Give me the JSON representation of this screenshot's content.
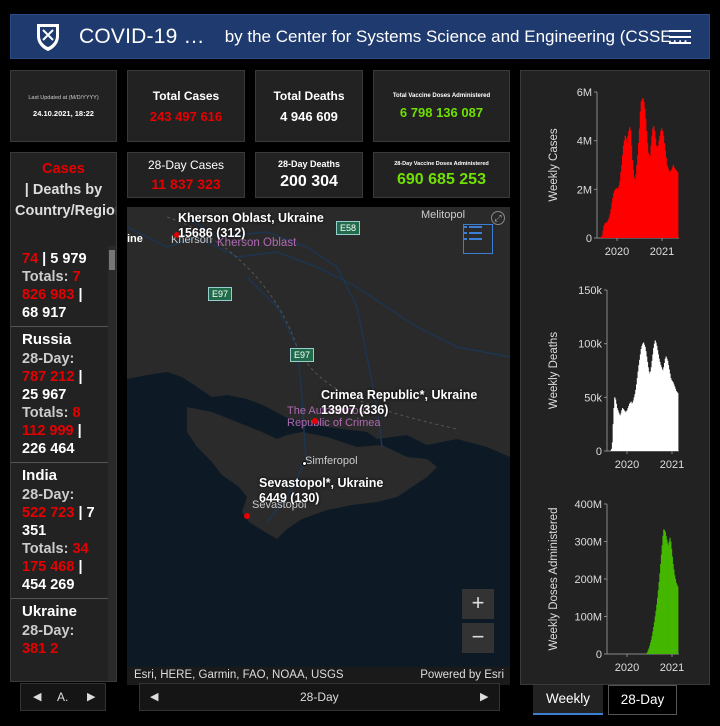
{
  "header": {
    "title": "COVID-19 …",
    "subtitle": "by the Center for Systems Science and Engineering (CSSE…"
  },
  "last_updated": {
    "label": "Last Updated at (M/D/YYYY)",
    "value": "24.10.2021, 18:22"
  },
  "stats": {
    "total_cases": {
      "label": "Total Cases",
      "value": "243 497 616"
    },
    "total_deaths": {
      "label": "Total Deaths",
      "value": "4 946 609"
    },
    "total_vaccine": {
      "label": "Total Vaccine Doses Administered",
      "value": "6 798 136 087"
    },
    "cases_28": {
      "label": "28-Day Cases",
      "value": "11 837 323"
    },
    "deaths_28": {
      "label": "28-Day Deaths",
      "value": "200 304"
    },
    "vaccine_28": {
      "label": "28-Day Vaccine Doses Administered",
      "value": "690 685 253"
    }
  },
  "list": {
    "head_cases": "Cases",
    "head_rest": "| Deaths by Country/Region/Sovereignty",
    "partial": {
      "line1_red": "74",
      "line1_rest": " | 5 979",
      "totals_label": "Totals: ",
      "totals_red": "7 826 983",
      "totals_rest": " | 68 917"
    },
    "items": [
      {
        "name": "Russia",
        "day_label": "28-Day: ",
        "day_cases": "787 212",
        "day_deaths": "25 967",
        "totals_label": "Totals: ",
        "total_cases": "8 112 999",
        "total_deaths": "226 464"
      },
      {
        "name": "India",
        "day_label": "28-Day: ",
        "day_cases": "522 723",
        "day_deaths": "7 351",
        "totals_label": "Totals: ",
        "total_cases": "34 175 468",
        "total_deaths": "454 269"
      },
      {
        "name": "Ukraine",
        "day_label": "28-Day: ",
        "day_cases": "381 2",
        "day_deaths": "",
        "totals_label": "",
        "total_cases": "",
        "total_deaths": ""
      }
    ]
  },
  "map": {
    "labels": {
      "kherson": "Kherson Oblast, Ukraine",
      "kherson_val": "15686 (312)",
      "crimea": "Crimea Republic*, Ukraine",
      "crimea_val": "13907 (336)",
      "sevastopol": "Sevastopol*, Ukraine",
      "sevastopol_val": "6449 (130)"
    },
    "cities": {
      "kherson": "Kherson",
      "melitopol": "Melitopol",
      "simferopol": "Simferopol",
      "sevastopol": "Sevastopol",
      "ine": "ine"
    },
    "regions": {
      "kherson_oblast": "Kherson Oblast",
      "crimea": "The Autonomous Republic of Crimea"
    },
    "shields": {
      "e58": "E58",
      "e97a": "E97",
      "e97b": "E97"
    },
    "attribution": "Esri, HERE, Garmin, FAO, NOAA, USGS",
    "powered": "Powered by Esri",
    "zoom_in": "+",
    "zoom_out": "−"
  },
  "list_pager": {
    "label": "A."
  },
  "map_pager": {
    "label": "28-Day"
  },
  "chart_tabs": {
    "weekly": "Weekly",
    "day28": "28-Day"
  },
  "chart_data": [
    {
      "type": "area",
      "ylabel": "Weekly Cases",
      "xticks": [
        "2020",
        "2021"
      ],
      "yticks": [
        "0",
        "2M",
        "4M",
        "6M"
      ],
      "ylim": [
        0,
        6000000
      ],
      "color": "#ff0000",
      "x": [
        0,
        1,
        2,
        3,
        4,
        5,
        6,
        7,
        8,
        9,
        10,
        11,
        12,
        13,
        14,
        15,
        16,
        17,
        18,
        19,
        20,
        21,
        22,
        23,
        24,
        25,
        26,
        27,
        28,
        29,
        30,
        31,
        32,
        33,
        34,
        35,
        36,
        37,
        38,
        39,
        40,
        41,
        42,
        43,
        44,
        45,
        46,
        47,
        48,
        49,
        50,
        51,
        52,
        53,
        54,
        55,
        56,
        57,
        58,
        59,
        60,
        61,
        62,
        63,
        64,
        65,
        66,
        67,
        68,
        69,
        70,
        71,
        72,
        73,
        74,
        75,
        76,
        77,
        78,
        79,
        80,
        81,
        82,
        83,
        84,
        85,
        86,
        87,
        88,
        89
      ],
      "values": [
        0,
        0,
        10000,
        50000,
        100000,
        300000,
        500000,
        600000,
        620000,
        640000,
        680000,
        750000,
        850000,
        1000000,
        1200000,
        1450000,
        1650000,
        1850000,
        1950000,
        2000000,
        2050000,
        2000000,
        2050000,
        2150000,
        2350000,
        2700000,
        3000000,
        3400000,
        3800000,
        4000000,
        4200000,
        4100000,
        3900000,
        4200000,
        4400000,
        4550000,
        4450000,
        3800000,
        3200000,
        2800000,
        2500000,
        2400000,
        2600000,
        3000000,
        3400000,
        3900000,
        4500000,
        5200000,
        5600000,
        5700000,
        5750000,
        5600000,
        5300000,
        4900000,
        4400000,
        3900000,
        3500000,
        3300000,
        3400000,
        3800000,
        4200000,
        4500000,
        4600000,
        4400000,
        4100000,
        3800000,
        3700000,
        3800000,
        4000000,
        4200000,
        4400000,
        4500000,
        4400000,
        4200000,
        3900000,
        3600000,
        3300000,
        3000000,
        2900000,
        2800000,
        2700000,
        2750000,
        2800000,
        2900000,
        3000000,
        2900000,
        2850000,
        2800000,
        2750000,
        2700000
      ]
    },
    {
      "type": "area",
      "ylabel": "Weekly Deaths",
      "xticks": [
        "2020",
        "2021"
      ],
      "yticks": [
        "0",
        "50k",
        "100k",
        "150k"
      ],
      "ylim": [
        0,
        150000
      ],
      "color": "#ffffff",
      "x": [
        0,
        1,
        2,
        3,
        4,
        5,
        6,
        7,
        8,
        9,
        10,
        11,
        12,
        13,
        14,
        15,
        16,
        17,
        18,
        19,
        20,
        21,
        22,
        23,
        24,
        25,
        26,
        27,
        28,
        29,
        30,
        31,
        32,
        33,
        34,
        35,
        36,
        37,
        38,
        39,
        40,
        41,
        42,
        43,
        44,
        45,
        46,
        47,
        48,
        49,
        50,
        51,
        52,
        53,
        54,
        55,
        56,
        57,
        58,
        59,
        60,
        61,
        62,
        63,
        64,
        65,
        66,
        67,
        68,
        69,
        70,
        71,
        72,
        73,
        74,
        75,
        76,
        77,
        78,
        79,
        80,
        81,
        82,
        83,
        84,
        85,
        86,
        87,
        88,
        89
      ],
      "values": [
        0,
        0,
        0,
        500,
        2000,
        8000,
        25000,
        40000,
        50000,
        48000,
        44000,
        40000,
        38000,
        36000,
        34000,
        33000,
        35000,
        38000,
        40000,
        39000,
        38000,
        37000,
        36000,
        37000,
        38000,
        40000,
        42000,
        44000,
        45000,
        46000,
        44000,
        45000,
        47000,
        50000,
        53000,
        57000,
        62000,
        68000,
        74000,
        80000,
        85000,
        90000,
        95000,
        98000,
        100000,
        101000,
        99000,
        97000,
        93000,
        88000,
        83000,
        78000,
        74000,
        72000,
        74000,
        78000,
        84000,
        90000,
        96000,
        100000,
        103000,
        101000,
        98000,
        94000,
        90000,
        86000,
        83000,
        80000,
        78000,
        76000,
        75000,
        78000,
        82000,
        86000,
        88000,
        86000,
        84000,
        80000,
        76000,
        72000,
        68000,
        66000,
        65000,
        64000,
        62000,
        60000,
        58000,
        56000,
        55000,
        54000
      ]
    },
    {
      "type": "area",
      "ylabel": "Weekly Doses Administered",
      "xticks": [
        "2020",
        "2021"
      ],
      "yticks": [
        "0",
        "100M",
        "200M",
        "300M",
        "400M"
      ],
      "ylim": [
        0,
        400000000
      ],
      "color": "#44b700",
      "x": [
        0,
        1,
        2,
        3,
        4,
        5,
        6,
        7,
        8,
        9,
        10,
        11,
        12,
        13,
        14,
        15,
        16,
        17,
        18,
        19,
        20,
        21,
        22,
        23,
        24,
        25,
        26,
        27,
        28,
        29,
        30,
        31,
        32,
        33,
        34,
        35,
        36,
        37,
        38,
        39,
        40,
        41,
        42,
        43,
        44,
        45,
        46,
        47,
        48,
        49,
        50,
        51,
        52,
        53,
        54,
        55,
        56,
        57,
        58,
        59,
        60,
        61,
        62,
        63,
        64,
        65,
        66,
        67,
        68,
        69,
        70,
        71,
        72,
        73,
        74,
        75,
        76,
        77,
        78,
        79,
        80,
        81,
        82,
        83,
        84,
        85,
        86,
        87,
        88,
        89
      ],
      "values": [
        0,
        0,
        0,
        0,
        0,
        0,
        0,
        0,
        0,
        0,
        0,
        0,
        0,
        0,
        0,
        0,
        0,
        0,
        0,
        0,
        0,
        0,
        0,
        0,
        0,
        0,
        0,
        0,
        0,
        0,
        0,
        0,
        0,
        0,
        0,
        0,
        0,
        0,
        0,
        0,
        0,
        0,
        0,
        0,
        0,
        0,
        0,
        0,
        500000,
        2000000,
        5000000,
        10000000,
        15000000,
        22000000,
        30000000,
        38000000,
        48000000,
        60000000,
        72000000,
        85000000,
        100000000,
        115000000,
        132000000,
        150000000,
        170000000,
        192000000,
        215000000,
        240000000,
        265000000,
        290000000,
        315000000,
        332000000,
        330000000,
        325000000,
        315000000,
        305000000,
        295000000,
        290000000,
        300000000,
        310000000,
        300000000,
        280000000,
        260000000,
        240000000,
        225000000,
        210000000,
        200000000,
        190000000,
        185000000,
        180000000
      ]
    }
  ]
}
